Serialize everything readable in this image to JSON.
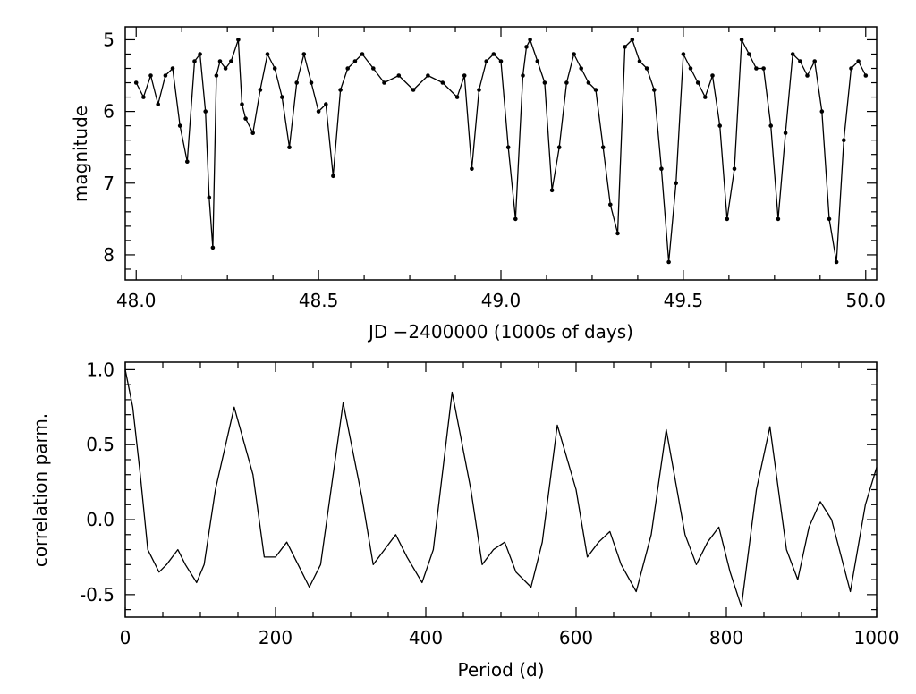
{
  "chart_data": [
    {
      "type": "line",
      "markers": true,
      "xlabel": "JD −2400000 (1000s of days)",
      "ylabel": "magnitude",
      "xlim": [
        47.97,
        50.03
      ],
      "ylim": [
        8.35,
        4.82
      ],
      "y_inverted": true,
      "xticks": [
        48.0,
        48.5,
        49.0,
        49.5,
        50.0
      ],
      "xtick_labels": [
        "48.0",
        "48.5",
        "49.0",
        "49.5",
        "50.0"
      ],
      "yticks": [
        5,
        6,
        7,
        8
      ],
      "ytick_labels": [
        "5",
        "6",
        "7",
        "8"
      ],
      "grid": false,
      "color": "#000000",
      "series": [
        {
          "x": [
            48.0,
            48.02,
            48.04,
            48.06,
            48.08,
            48.1,
            48.12,
            48.14,
            48.16,
            48.175,
            48.19,
            48.2,
            48.21,
            48.22,
            48.23,
            48.245,
            48.26,
            48.28,
            48.29,
            48.3,
            48.32,
            48.34,
            48.36,
            48.38,
            48.4,
            48.42,
            48.44,
            48.46,
            48.48,
            48.5,
            48.52,
            48.54,
            48.56,
            48.58,
            48.6,
            48.62,
            48.65,
            48.68,
            48.72,
            48.76,
            48.8,
            48.84,
            48.88,
            48.9,
            48.92,
            48.94,
            48.96,
            48.98,
            49.0,
            49.02,
            49.04,
            49.06,
            49.07,
            49.08,
            49.1,
            49.12,
            49.14,
            49.16,
            49.18,
            49.2,
            49.22,
            49.24,
            49.26,
            49.28,
            49.3,
            49.32,
            49.34,
            49.36,
            49.38,
            49.4,
            49.42,
            49.44,
            49.46,
            49.48,
            49.5,
            49.52,
            49.54,
            49.56,
            49.58,
            49.6,
            49.62,
            49.64,
            49.66,
            49.68,
            49.7,
            49.72,
            49.74,
            49.76,
            49.78,
            49.8,
            49.82,
            49.84,
            49.86,
            49.88,
            49.9,
            49.92,
            49.94,
            49.96,
            49.98,
            50.0
          ],
          "y": [
            5.6,
            5.8,
            5.5,
            5.9,
            5.5,
            5.4,
            6.2,
            6.7,
            5.3,
            5.2,
            6.0,
            7.2,
            7.9,
            5.5,
            5.3,
            5.4,
            5.3,
            5.0,
            5.9,
            6.1,
            6.3,
            5.7,
            5.2,
            5.4,
            5.8,
            6.5,
            5.6,
            5.2,
            5.6,
            6.0,
            5.9,
            6.9,
            5.7,
            5.4,
            5.3,
            5.2,
            5.4,
            5.6,
            5.5,
            5.7,
            5.5,
            5.6,
            5.8,
            5.5,
            6.8,
            5.7,
            5.3,
            5.2,
            5.3,
            6.5,
            7.5,
            5.5,
            5.1,
            5.0,
            5.3,
            5.6,
            7.1,
            6.5,
            5.6,
            5.2,
            5.4,
            5.6,
            5.7,
            6.5,
            7.3,
            7.7,
            5.1,
            5.0,
            5.3,
            5.4,
            5.7,
            6.8,
            8.1,
            7.0,
            5.2,
            5.4,
            5.6,
            5.8,
            5.5,
            6.2,
            7.5,
            6.8,
            5.0,
            5.2,
            5.4,
            5.4,
            6.2,
            7.5,
            6.3,
            5.2,
            5.3,
            5.5,
            5.3,
            6.0,
            7.5,
            8.1,
            6.4,
            5.4,
            5.3,
            5.5
          ]
        }
      ]
    },
    {
      "type": "line",
      "xlabel": "Period (d)",
      "ylabel": "correlation parm.",
      "xlim": [
        0,
        1000
      ],
      "ylim": [
        -0.65,
        1.05
      ],
      "xticks": [
        0,
        200,
        400,
        600,
        800,
        1000
      ],
      "xtick_labels": [
        "0",
        "200",
        "400",
        "600",
        "800",
        "1000"
      ],
      "yticks": [
        1.0,
        0.5,
        0.0,
        -0.5
      ],
      "ytick_labels": [
        "1.0",
        "0.5",
        "0.0",
        "-0.5"
      ],
      "grid": false,
      "color": "#000000",
      "series": [
        {
          "x": [
            0,
            10,
            20,
            30,
            45,
            55,
            70,
            80,
            95,
            105,
            120,
            145,
            170,
            185,
            200,
            215,
            230,
            245,
            260,
            290,
            315,
            330,
            345,
            360,
            375,
            395,
            410,
            435,
            460,
            475,
            490,
            505,
            520,
            540,
            555,
            575,
            600,
            615,
            630,
            645,
            660,
            680,
            700,
            720,
            745,
            760,
            775,
            790,
            805,
            820,
            840,
            858,
            880,
            895,
            910,
            925,
            940,
            965,
            985,
            1000
          ],
          "y": [
            1.0,
            0.75,
            0.3,
            -0.2,
            -0.35,
            -0.3,
            -0.2,
            -0.3,
            -0.42,
            -0.3,
            0.2,
            0.75,
            0.3,
            -0.25,
            -0.25,
            -0.15,
            -0.3,
            -0.45,
            -0.3,
            0.78,
            0.15,
            -0.3,
            -0.2,
            -0.1,
            -0.25,
            -0.42,
            -0.2,
            0.85,
            0.2,
            -0.3,
            -0.2,
            -0.15,
            -0.35,
            -0.45,
            -0.15,
            0.63,
            0.2,
            -0.25,
            -0.15,
            -0.08,
            -0.3,
            -0.48,
            -0.1,
            0.6,
            -0.1,
            -0.3,
            -0.15,
            -0.05,
            -0.35,
            -0.58,
            0.2,
            0.62,
            -0.2,
            -0.4,
            -0.05,
            0.12,
            0.0,
            -0.48,
            0.1,
            0.35
          ]
        }
      ]
    }
  ]
}
